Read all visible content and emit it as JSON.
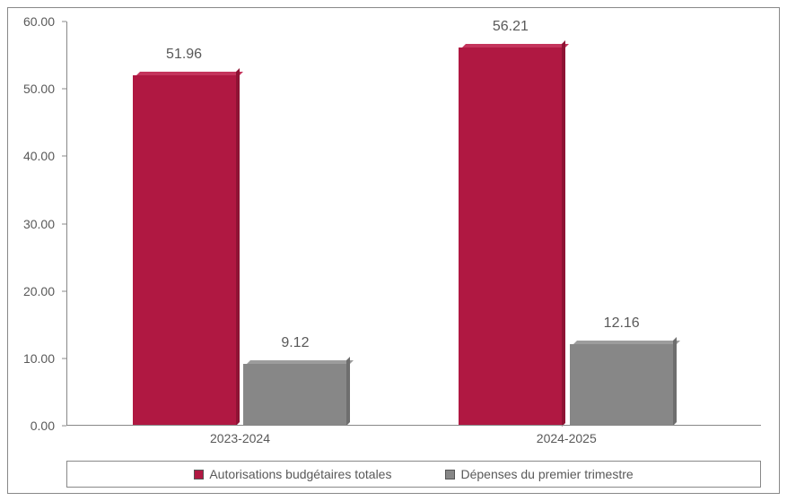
{
  "chart": {
    "type": "bar",
    "background_color": "#ffffff",
    "border_color": "#888888",
    "text_color": "#595959",
    "label_fontsize": 14,
    "value_label_fontsize": 16,
    "ylim": [
      0,
      60
    ],
    "ytick_step": 10,
    "yticks": [
      "0.00",
      "10.00",
      "20.00",
      "30.00",
      "40.00",
      "50.00",
      "60.00"
    ],
    "categories": [
      "2023-2024",
      "2024-2025"
    ],
    "series": [
      {
        "name": "Autorisations budgétaires totales",
        "color": "#b01842",
        "color_top": "#c4345c",
        "color_side": "#8e1334",
        "values": [
          51.96,
          56.21
        ],
        "labels": [
          "51.96",
          "56.21"
        ]
      },
      {
        "name": "Dépenses du premier trimestre",
        "color": "#878787",
        "color_top": "#9c9c9c",
        "color_side": "#6e6e6e",
        "values": [
          9.12,
          12.16
        ],
        "labels": [
          "9.12",
          "12.16"
        ]
      }
    ],
    "bar_width_pct": 15,
    "group_positions_pct": [
      25,
      72
    ],
    "bar_gap_pct": 1
  }
}
